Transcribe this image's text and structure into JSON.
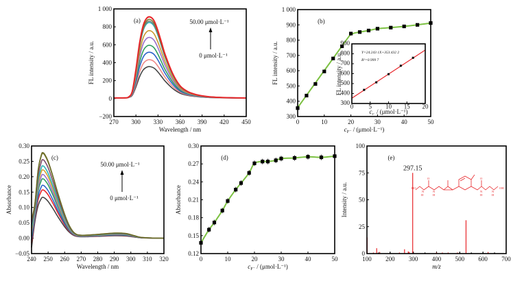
{
  "chart_data": [
    {
      "id": "a",
      "type": "line",
      "panel_label": "(a)",
      "xlabel": "Wavelength / nm",
      "ylabel": "FL intensity / a.u.",
      "xlim": [
        270,
        450
      ],
      "ylim": [
        -200,
        1000
      ],
      "xticks": [
        270,
        300,
        330,
        360,
        390,
        420,
        450
      ],
      "yticks": [
        -200,
        0,
        200,
        400,
        600,
        800,
        1000
      ],
      "ytick_labels": [
        "−200",
        "0",
        "200",
        "400",
        "600",
        "800",
        "1 000"
      ],
      "annotation_top": "50.00 μmol·L⁻¹",
      "annotation_bottom": "0 μmol·L⁻¹",
      "x": [
        270,
        285,
        290,
        295,
        300,
        305,
        310,
        315,
        320,
        325,
        330,
        335,
        340,
        350,
        360,
        370,
        380,
        390,
        400,
        420,
        450
      ],
      "normalized_profile": [
        0,
        0,
        0.01,
        0.08,
        0.35,
        0.68,
        0.9,
        0.99,
        1,
        0.95,
        0.83,
        0.68,
        0.53,
        0.3,
        0.15,
        0.08,
        0.045,
        0.025,
        0.015,
        0.005,
        0
      ],
      "series": [
        {
          "peak": 355,
          "color": "#444444"
        },
        {
          "peak": 432,
          "color": "#f08a8a"
        },
        {
          "peak": 515,
          "color": "#2a62c9"
        },
        {
          "peak": 592,
          "color": "#2e9e5e"
        },
        {
          "peak": 680,
          "color": "#9a6fc9"
        },
        {
          "peak": 755,
          "color": "#c99a2e"
        },
        {
          "peak": 845,
          "color": "#2ab5b5"
        },
        {
          "peak": 860,
          "color": "#7a7a7a"
        },
        {
          "peak": 880,
          "color": "#7a7a30"
        },
        {
          "peak": 908,
          "color": "#e8262a"
        }
      ]
    },
    {
      "id": "b",
      "type": "scatter",
      "panel_label": "(b)",
      "xlabel": "c",
      "xlabel_sub": "F⁻",
      "xlabel_rest": " / (μmol·L⁻¹)",
      "ylabel": "FL intensity / a.u.",
      "xlim": [
        0,
        50
      ],
      "ylim": [
        300,
        1000
      ],
      "xticks": [
        0,
        10,
        20,
        30,
        40,
        50
      ],
      "yticks": [
        300,
        400,
        500,
        600,
        700,
        800,
        900,
        1000
      ],
      "ytick_labels": [
        "300",
        "400",
        "500",
        "600",
        "700",
        "800",
        "900",
        "1 000"
      ],
      "x": [
        0,
        3.33,
        6.67,
        10,
        13.33,
        16.67,
        20,
        23.33,
        26.67,
        30,
        35,
        40,
        45,
        50
      ],
      "y": [
        355,
        437,
        513,
        595,
        680,
        760,
        843,
        853,
        863,
        875,
        882,
        890,
        900,
        912
      ],
      "line_color": "#7cc142",
      "inset": {
        "xlabel": "c",
        "xlabel_sub": "F⁻",
        "xlabel_rest": " / (μmol·L⁻¹)",
        "ylabel": "FL intensity / a.u.",
        "xlim": [
          0,
          20
        ],
        "ylim": [
          300,
          900
        ],
        "xticks": [
          0,
          5,
          10,
          15,
          20
        ],
        "yticks": [
          300,
          400,
          500,
          600,
          700,
          800,
          900
        ],
        "x": [
          3.33,
          6.67,
          10,
          13.33,
          16.67
        ],
        "y": [
          437,
          513,
          595,
          680,
          760
        ],
        "fit_slope": 24.2431,
        "fit_intercept": 353.4322,
        "equation": "Y=24.243 1X+353.432 2",
        "r_squared": "R²=0.999 7",
        "line_color": "#e8262a"
      }
    },
    {
      "id": "c",
      "type": "line",
      "panel_label": "(c)",
      "xlabel": "Wavelength / nm",
      "ylabel": "Absorbance",
      "xlim": [
        240,
        320
      ],
      "ylim": [
        -0.05,
        0.3
      ],
      "xticks": [
        240,
        250,
        260,
        270,
        280,
        290,
        300,
        310,
        320
      ],
      "yticks": [
        -0.05,
        0,
        0.05,
        0.1,
        0.15,
        0.2,
        0.25,
        0.3
      ],
      "ytick_labels": [
        "−0.05",
        "0.00",
        "0.05",
        "0.10",
        "0.15",
        "0.20",
        "0.25",
        "0.30"
      ],
      "annotation_top": "50.00 μmol·L⁻¹",
      "annotation_bottom": "0 μmol·L⁻¹",
      "x": [
        240,
        242,
        244,
        246,
        247,
        248,
        250,
        253,
        256,
        260,
        263,
        266,
        270,
        280,
        290,
        297,
        302,
        306,
        312,
        320
      ],
      "normalized_profile": [
        0.05,
        0.4,
        0.8,
        0.98,
        1,
        0.98,
        0.9,
        0.72,
        0.52,
        0.28,
        0.14,
        0.06,
        0.035,
        0.045,
        0.06,
        0.055,
        0.03,
        0.01,
        0.003,
        0
      ],
      "series": [
        {
          "peak": 0.133,
          "color": "#444444"
        },
        {
          "peak": 0.157,
          "color": "#e8262a"
        },
        {
          "peak": 0.172,
          "color": "#2a62c9"
        },
        {
          "peak": 0.193,
          "color": "#2e9e5e"
        },
        {
          "peak": 0.207,
          "color": "#9a6fc9"
        },
        {
          "peak": 0.222,
          "color": "#d9a02e"
        },
        {
          "peak": 0.235,
          "color": "#2ab5b5"
        },
        {
          "peak": 0.255,
          "color": "#7a4a6a"
        },
        {
          "peak": 0.275,
          "color": "#8a8a3a"
        },
        {
          "peak": 0.278,
          "color": "#6b6b2a"
        }
      ]
    },
    {
      "id": "d",
      "type": "scatter",
      "panel_label": "(d)",
      "xlabel": "c",
      "xlabel_sub": "F⁻",
      "xlabel_rest": " / (μmol·L⁻¹)",
      "ylabel": "Absorbance",
      "xlim": [
        0,
        50
      ],
      "ylim": [
        0.12,
        0.3
      ],
      "xticks": [
        0,
        10,
        20,
        30,
        40,
        50
      ],
      "yticks": [
        0.12,
        0.15,
        0.18,
        0.21,
        0.24,
        0.27,
        0.3
      ],
      "ytick_labels": [
        "0.12",
        "0.15",
        "0.18",
        "0.21",
        "0.24",
        "0.27",
        "0.30"
      ],
      "x": [
        0,
        3,
        5,
        8,
        10,
        13,
        15,
        18,
        20,
        23,
        25,
        28,
        30,
        35,
        40,
        45,
        50
      ],
      "y": [
        0.138,
        0.16,
        0.172,
        0.192,
        0.208,
        0.227,
        0.238,
        0.255,
        0.271,
        0.274,
        0.274,
        0.276,
        0.279,
        0.28,
        0.282,
        0.281,
        0.283
      ],
      "line_color": "#7cc142"
    },
    {
      "id": "e",
      "type": "bar",
      "panel_label": "(e)",
      "xlabel": "m/z",
      "ylabel": "Intensity / a.u.",
      "xlim": [
        100,
        700
      ],
      "ylim": [
        0,
        100
      ],
      "xticks": [
        100,
        200,
        300,
        400,
        500,
        600,
        700
      ],
      "yticks": [
        0,
        25,
        50,
        75,
        100
      ],
      "ytick_labels": [
        "0",
        "25",
        "50",
        "75",
        "100"
      ],
      "peak_label": "297.15",
      "peaks_x": [
        101,
        128,
        142,
        155,
        240,
        262,
        278,
        282,
        297.15,
        400,
        425,
        450,
        490,
        527,
        622
      ],
      "peaks_y": [
        15,
        1,
        5,
        1.5,
        1,
        4,
        2,
        1.5,
        75,
        1,
        1,
        1,
        1,
        31,
        1.5
      ],
      "peak_color": "#e8262a",
      "structure_labels": [
        "HO",
        "N",
        "H",
        "O",
        "N",
        "H",
        "N",
        "H",
        "O",
        "N",
        "H",
        "OH"
      ]
    }
  ]
}
